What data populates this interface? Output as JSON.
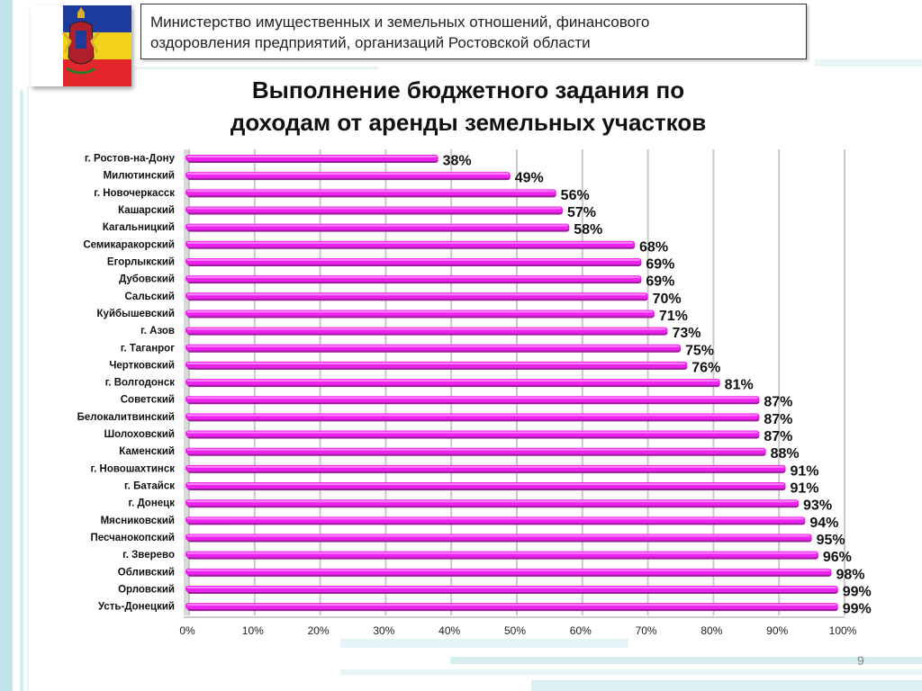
{
  "header": {
    "line1": "Министерство имущественных и земельных отношений, финансового",
    "line2": "оздоровления предприятий, организаций Ростовской области"
  },
  "slide_title": {
    "line1": "Выполнение бюджетного задания по",
    "line2": "доходам от аренды земельных участков"
  },
  "page_number": "9",
  "colors": {
    "bar": "#ee22ee",
    "bar_shadow": "#9a1a9a",
    "emblem_white": "#ffffff",
    "emblem_blue": "#1c3b9c",
    "emblem_yellow": "#f3d21a",
    "emblem_red": "#e3262a",
    "decor_teal": "#8fd0d6"
  },
  "chart_data": {
    "type": "bar",
    "orientation": "horizontal",
    "categories": [
      "г. Ростов-на-Дону",
      "Милютинский",
      "г. Новочеркасск",
      "Кашарский",
      "Кагальницкий",
      "Семикаракорский",
      "Егорлыкский",
      "Дубовский",
      "Сальский",
      "Куйбышевский",
      "г. Азов",
      "г. Таганрог",
      "Чертковский",
      "г. Волгодонск",
      "Советский",
      "Белокалитвинский",
      "Шолоховский",
      "Каменский",
      "г. Новошахтинск",
      "г. Батайск",
      "г. Донецк",
      "Мясниковский",
      "Песчанокопский",
      "г. Зверево",
      "Обливский",
      "Орловский",
      "Усть-Донецкий"
    ],
    "values": [
      38,
      49,
      56,
      57,
      58,
      68,
      69,
      69,
      70,
      71,
      73,
      75,
      76,
      81,
      87,
      87,
      87,
      88,
      91,
      91,
      93,
      94,
      95,
      96,
      98,
      99,
      99
    ],
    "value_labels": [
      "38%",
      "49%",
      "56%",
      "57%",
      "58%",
      "68%",
      "69%",
      "69%",
      "70%",
      "71%",
      "73%",
      "75%",
      "76%",
      "81%",
      "87%",
      "87%",
      "87%",
      "88%",
      "91%",
      "91%",
      "93%",
      "94%",
      "95%",
      "96%",
      "98%",
      "99%",
      "99%"
    ],
    "x_ticks": [
      "0%",
      "10%",
      "20%",
      "30%",
      "40%",
      "50%",
      "60%",
      "70%",
      "80%",
      "90%",
      "100%"
    ],
    "xlim": [
      0,
      100
    ],
    "grid": "vertical",
    "legend": "none"
  }
}
